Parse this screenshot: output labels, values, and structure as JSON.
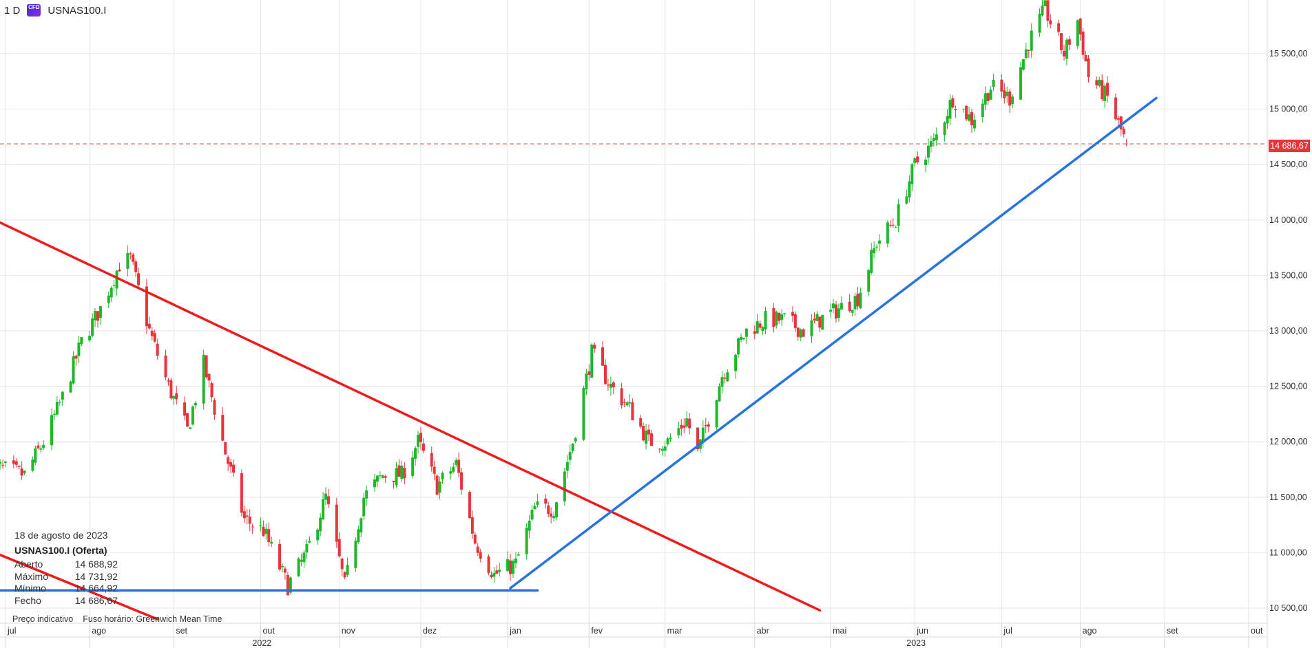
{
  "header": {
    "timeframe": "1 D",
    "instrument_icon": "cfd-icon",
    "instrument_badge": "CFD",
    "symbol": "USNAS100.I"
  },
  "info_panel": {
    "date": "18 de agosto de 2023",
    "title": "USNAS100.I (Oferta)",
    "rows": [
      {
        "label": "Aberto",
        "value": "14 688,92"
      },
      {
        "label": "Máximo",
        "value": "14 731,92"
      },
      {
        "label": "Mínimo",
        "value": "14 664,92"
      },
      {
        "label": "Fecho",
        "value": "14 686,67"
      }
    ]
  },
  "footer": {
    "indicative": "Preço indicativo",
    "timezone": "Fuso horário: Greenwich Mean Time"
  },
  "current_price_label": "14 686,67",
  "colors": {
    "up": "#1eb82a",
    "down": "#e8353a",
    "trend_down": "#ee1c1c",
    "trend_up": "#2574e0",
    "grid": "#e6e6e6",
    "price_line": "#e8353a"
  },
  "chart_data": {
    "type": "candlestick",
    "title": "",
    "xlabel": "",
    "ylabel": "",
    "y_ticks": [
      "10 500,00",
      "11 000,00",
      "11 500,00",
      "12 000,00",
      "12 500,00",
      "13 000,00",
      "13 500,00",
      "14 000,00",
      "14 500,00",
      "15 000,00",
      "15 500,00"
    ],
    "y_tick_values": [
      10500,
      11000,
      11500,
      12000,
      12500,
      13000,
      13500,
      14000,
      14500,
      15000,
      15500
    ],
    "ylim": [
      10500,
      15600
    ],
    "x_ticks": [
      {
        "label": "jul",
        "date": "2022-07-01"
      },
      {
        "label": "ago",
        "date": "2022-08-01"
      },
      {
        "label": "set",
        "date": "2022-09-01"
      },
      {
        "label": "out",
        "date": "2022-10-03"
      },
      {
        "label": "nov",
        "date": "2022-11-01"
      },
      {
        "label": "dez",
        "date": "2022-12-01"
      },
      {
        "label": "jan",
        "date": "2023-01-02"
      },
      {
        "label": "fev",
        "date": "2023-02-01"
      },
      {
        "label": "mar",
        "date": "2023-03-01"
      },
      {
        "label": "abr",
        "date": "2023-04-03"
      },
      {
        "label": "mai",
        "date": "2023-05-01"
      },
      {
        "label": "jun",
        "date": "2023-06-01"
      },
      {
        "label": "jul",
        "date": "2023-07-03"
      },
      {
        "label": "ago",
        "date": "2023-08-01"
      },
      {
        "label": "set",
        "date": "2023-09-01"
      },
      {
        "label": "out",
        "date": "2023-10-02"
      }
    ],
    "x_years": [
      {
        "label": "2022",
        "date": "2022-10-03"
      },
      {
        "label": "2023",
        "date": "2023-06-01"
      }
    ],
    "current_price": 14686.67,
    "series": [
      {
        "name": "USNAS100.I",
        "type": "candlestick",
        "close_path": [
          [
            "2022-06-24",
            11800
          ],
          [
            "2022-07-08",
            11700
          ],
          [
            "2022-07-15",
            12000
          ],
          [
            "2022-07-22",
            12400
          ],
          [
            "2022-07-29",
            12900
          ],
          [
            "2022-08-05",
            13200
          ],
          [
            "2022-08-12",
            13600
          ],
          [
            "2022-08-16",
            13650
          ],
          [
            "2022-08-23",
            13000
          ],
          [
            "2022-08-30",
            12500
          ],
          [
            "2022-09-06",
            12100
          ],
          [
            "2022-09-12",
            12700
          ],
          [
            "2022-09-20",
            11900
          ],
          [
            "2022-09-27",
            11300
          ],
          [
            "2022-10-04",
            11200
          ],
          [
            "2022-10-13",
            10700
          ],
          [
            "2022-10-20",
            11000
          ],
          [
            "2022-10-27",
            11500
          ],
          [
            "2022-11-03",
            10700
          ],
          [
            "2022-11-10",
            11500
          ],
          [
            "2022-11-17",
            11700
          ],
          [
            "2022-11-24",
            11700
          ],
          [
            "2022-11-30",
            12000
          ],
          [
            "2022-12-07",
            11600
          ],
          [
            "2022-12-14",
            11800
          ],
          [
            "2022-12-21",
            11100
          ],
          [
            "2022-12-28",
            10800
          ],
          [
            "2023-01-05",
            10900
          ],
          [
            "2023-01-12",
            11400
          ],
          [
            "2023-01-19",
            11400
          ],
          [
            "2023-01-26",
            12000
          ],
          [
            "2023-02-02",
            12800
          ],
          [
            "2023-02-09",
            12500
          ],
          [
            "2023-02-16",
            12300
          ],
          [
            "2023-02-23",
            12000
          ],
          [
            "2023-03-02",
            12000
          ],
          [
            "2023-03-09",
            12200
          ],
          [
            "2023-03-13",
            11900
          ],
          [
            "2023-03-22",
            12600
          ],
          [
            "2023-03-31",
            13000
          ],
          [
            "2023-04-07",
            13100
          ],
          [
            "2023-04-14",
            13100
          ],
          [
            "2023-04-21",
            13000
          ],
          [
            "2023-04-27",
            13100
          ],
          [
            "2023-05-04",
            13200
          ],
          [
            "2023-05-11",
            13300
          ],
          [
            "2023-05-18",
            13800
          ],
          [
            "2023-05-25",
            14000
          ],
          [
            "2023-06-01",
            14500
          ],
          [
            "2023-06-08",
            14700
          ],
          [
            "2023-06-15",
            15100
          ],
          [
            "2023-06-22",
            14900
          ],
          [
            "2023-06-29",
            15200
          ],
          [
            "2023-07-06",
            15100
          ],
          [
            "2023-07-13",
            15600
          ],
          [
            "2023-07-19",
            15900
          ],
          [
            "2023-07-26",
            15500
          ],
          [
            "2023-07-31",
            15800
          ],
          [
            "2023-08-04",
            15300
          ],
          [
            "2023-08-11",
            15100
          ],
          [
            "2023-08-18",
            14686.67
          ]
        ]
      }
    ],
    "last_candle": {
      "date": "2023-08-18",
      "open": 14688.92,
      "high": 14731.92,
      "low": 14664.92,
      "close": 14686.67
    },
    "trendlines": [
      {
        "name": "descending-resistance",
        "color": "red",
        "from": {
          "date": "2022-06-27",
          "value": 14000
        },
        "to": {
          "date": "2023-04-27",
          "value": 10480
        }
      },
      {
        "name": "short-red-segment",
        "color": "red",
        "from": {
          "date": "2022-06-27",
          "value": 11000
        },
        "to": {
          "date": "2022-08-26",
          "value": 10400
        }
      },
      {
        "name": "ascending-support",
        "color": "blue",
        "from": {
          "date": "2023-01-03",
          "value": 10680
        },
        "to": {
          "date": "2023-08-29",
          "value": 15100
        }
      },
      {
        "name": "horizontal-support",
        "color": "blue",
        "from": {
          "date": "2022-06-27",
          "value": 10660
        },
        "to": {
          "date": "2023-01-13",
          "value": 10660
        }
      }
    ]
  }
}
